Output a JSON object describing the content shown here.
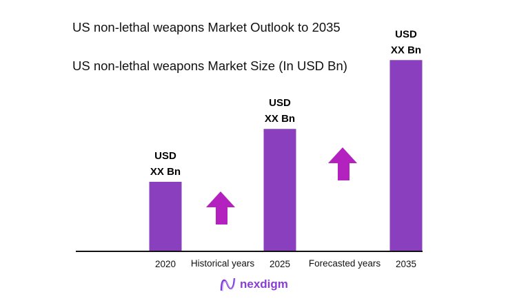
{
  "chart_data": {
    "type": "bar",
    "title": "US non-lethal weapons Market Outlook to 2035",
    "subtitle": "US non-lethal weapons Market Size (In USD Bn)",
    "categories": [
      "2020",
      "2025",
      "2035"
    ],
    "values": [
      1,
      1.76,
      2.75
    ],
    "data_labels": [
      {
        "line1": "USD",
        "line2": "XX Bn"
      },
      {
        "line1": "USD",
        "line2": "XX Bn"
      },
      {
        "line1": "USD",
        "line2": "XX Bn"
      }
    ],
    "period_labels": [
      "Historical years",
      "Forecasted years"
    ],
    "grid": false,
    "colors": {
      "bar": "#8a3fbe",
      "arrow": "#b322be",
      "axis": "#111111"
    }
  },
  "logo": {
    "text": "nexdigm"
  }
}
